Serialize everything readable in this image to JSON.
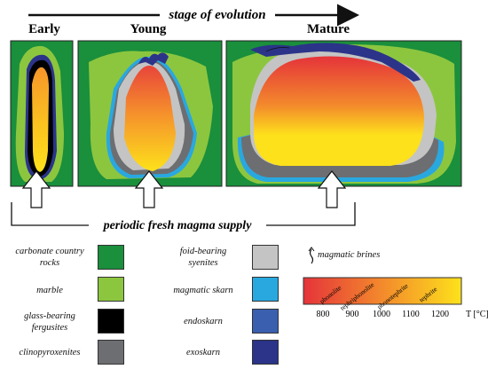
{
  "header": {
    "arrow_label": "stage of evolution"
  },
  "stages": [
    "Early",
    "Young",
    "Mature"
  ],
  "supply_label": "periodic fresh magma supply",
  "legend_left": [
    {
      "label_lines": [
        "carbonate country",
        "rocks"
      ],
      "color": "#1a8f3c"
    },
    {
      "label_lines": [
        "marble"
      ],
      "color": "#8cc63f"
    },
    {
      "label_lines": [
        "glass-bearing",
        "fergusites"
      ],
      "color": "#000000"
    },
    {
      "label_lines": [
        "clinopyroxenites"
      ],
      "color": "#6d6e71"
    }
  ],
  "legend_middle": [
    {
      "label_lines": [
        "foid-bearing",
        "syenites"
      ],
      "color": "#c4c4c4"
    },
    {
      "label_lines": [
        "magmatic skarn"
      ],
      "color": "#29a8e0"
    },
    {
      "label_lines": [
        "endoskarn"
      ],
      "color": "#3a5fae"
    },
    {
      "label_lines": [
        "exoskarn"
      ],
      "color": "#2b3489"
    }
  ],
  "brines_label": "magmatic brines",
  "temperature_scale": {
    "rock_types": [
      "phonolite",
      "tephriphonolite",
      "phonotephrite",
      "tephrite"
    ],
    "ticks": [
      "800",
      "900",
      "1000",
      "1100",
      "1200"
    ],
    "unit_label": "T [°C]",
    "gradient_colors": [
      "#e5343a",
      "#f38a2c",
      "#fde11b"
    ]
  },
  "colors": {
    "country_rock": "#1a8f3c",
    "marble": "#8cc63f",
    "glass": "#000000",
    "clinopyroxenite": "#6d6e71",
    "syenite": "#c4c4c4",
    "magmatic_skarn": "#29a8e0",
    "endoskarn": "#3a5fae",
    "exoskarn": "#2b3489"
  }
}
